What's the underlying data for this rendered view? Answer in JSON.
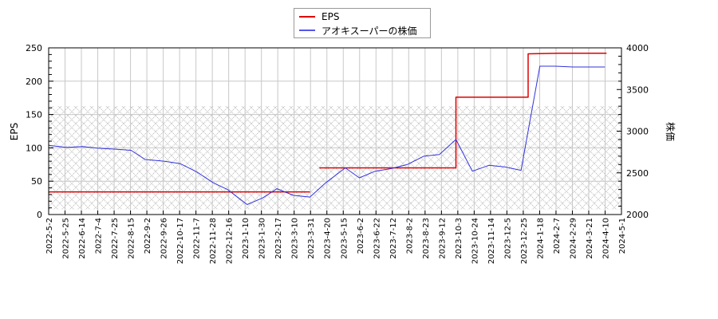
{
  "chart_data": {
    "type": "line",
    "title": "",
    "legend": {
      "position": "top-center",
      "entries": [
        {
          "label": "EPS",
          "color": "#dd0000"
        },
        {
          "label": "アオキスーパーの株価",
          "color": "#3333dd"
        }
      ]
    },
    "grid": true,
    "shaded_band": {
      "from_eps": 0,
      "to_eps": 163,
      "style": "cross-hatch"
    },
    "left_axis": {
      "label": "EPS",
      "ylim": [
        0,
        250
      ],
      "ticks": [
        "0",
        "50",
        "100",
        "150",
        "200",
        "250"
      ]
    },
    "right_axis": {
      "label": "株価",
      "ylim": [
        2000,
        4000
      ],
      "ticks": [
        "2000",
        "2500",
        "3000",
        "3500",
        "4000"
      ]
    },
    "x_tick_labels": [
      "2022-5-2",
      "2022-5-25",
      "2022-6-14",
      "2022-7-4",
      "2022-7-25",
      "2022-8-15",
      "2022-9-2",
      "2022-9-26",
      "2022-10-17",
      "2022-11-7",
      "2022-11-28",
      "2022-12-16",
      "2023-1-10",
      "2023-1-30",
      "2023-2-17",
      "2023-3-10",
      "2023-3-31",
      "2023-4-20",
      "2023-5-15",
      "2023-6-2",
      "2023-6-22",
      "2023-7-12",
      "2023-8-2",
      "2023-8-23",
      "2023-9-12",
      "2023-10-3",
      "2023-10-24",
      "2023-11-14",
      "2023-12-5",
      "2023-12-25",
      "2024-1-18",
      "2024-2-7",
      "2024-2-29",
      "2024-3-21",
      "2024-4-10",
      "2024-5-1"
    ],
    "series": [
      {
        "name": "EPS",
        "axis": "left",
        "color": "#dd0000",
        "step": true,
        "points": [
          {
            "x": "2022-5-2",
            "y": 34
          },
          {
            "x": "2023-3-31",
            "y": 34
          },
          {
            "x": "2023-4-12",
            "y": null
          },
          {
            "x": "2023-4-12",
            "y": 70
          },
          {
            "x": "2023-10-3",
            "y": 70
          },
          {
            "x": "2023-10-3",
            "y": 176
          },
          {
            "x": "2024-1-3",
            "y": 176
          },
          {
            "x": "2024-1-3",
            "y": 241
          },
          {
            "x": "2024-2-12",
            "y": 242
          },
          {
            "x": "2024-4-12",
            "y": 242
          }
        ]
      },
      {
        "name": "アオキスーパーの株価",
        "axis": "right",
        "color": "#3333dd",
        "points": [
          {
            "x": "2022-5-2",
            "y": 2830
          },
          {
            "x": "2022-5-25",
            "y": 2805
          },
          {
            "x": "2022-6-14",
            "y": 2815
          },
          {
            "x": "2022-7-4",
            "y": 2795
          },
          {
            "x": "2022-7-25",
            "y": 2785
          },
          {
            "x": "2022-8-15",
            "y": 2770
          },
          {
            "x": "2022-9-2",
            "y": 2660
          },
          {
            "x": "2022-9-26",
            "y": 2640
          },
          {
            "x": "2022-10-17",
            "y": 2610
          },
          {
            "x": "2022-11-7",
            "y": 2510
          },
          {
            "x": "2022-11-28",
            "y": 2380
          },
          {
            "x": "2022-12-16",
            "y": 2300
          },
          {
            "x": "2023-1-10",
            "y": 2120
          },
          {
            "x": "2023-1-30",
            "y": 2200
          },
          {
            "x": "2023-2-17",
            "y": 2310
          },
          {
            "x": "2023-3-10",
            "y": 2230
          },
          {
            "x": "2023-3-31",
            "y": 2210
          },
          {
            "x": "2023-4-20",
            "y": 2380
          },
          {
            "x": "2023-5-15",
            "y": 2560
          },
          {
            "x": "2023-6-2",
            "y": 2440
          },
          {
            "x": "2023-6-22",
            "y": 2520
          },
          {
            "x": "2023-7-12",
            "y": 2550
          },
          {
            "x": "2023-8-2",
            "y": 2600
          },
          {
            "x": "2023-8-23",
            "y": 2700
          },
          {
            "x": "2023-9-12",
            "y": 2720
          },
          {
            "x": "2023-10-3",
            "y": 2900
          },
          {
            "x": "2023-10-24",
            "y": 2520
          },
          {
            "x": "2023-11-14",
            "y": 2590
          },
          {
            "x": "2023-12-5",
            "y": 2570
          },
          {
            "x": "2023-12-25",
            "y": 2530
          },
          {
            "x": "2024-1-18",
            "y": 3780
          },
          {
            "x": "2024-2-7",
            "y": 3780
          },
          {
            "x": "2024-2-29",
            "y": 3770
          },
          {
            "x": "2024-3-21",
            "y": 3770
          },
          {
            "x": "2024-4-10",
            "y": 3770
          }
        ]
      }
    ]
  }
}
